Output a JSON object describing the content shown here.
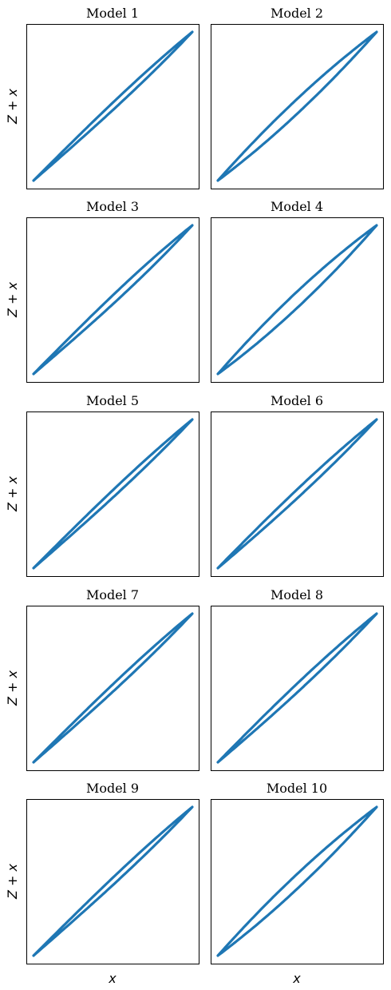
{
  "figure": {
    "accent_color": "#1f77b4",
    "ylabel": "Z + x",
    "xlabel": "x"
  },
  "chart_data": [
    {
      "type": "line",
      "title": "Model 1",
      "xlabel": "",
      "ylabel": "Z + x",
      "grid": false,
      "ticks": false,
      "series": [
        {
          "loop_width": 0.05,
          "asymmetry": 0.3
        }
      ]
    },
    {
      "type": "line",
      "title": "Model 2",
      "xlabel": "",
      "ylabel": "",
      "grid": false,
      "ticks": false,
      "series": [
        {
          "loop_width": 0.1,
          "asymmetry": 0.0
        }
      ]
    },
    {
      "type": "line",
      "title": "Model 3",
      "xlabel": "",
      "ylabel": "Z + x",
      "grid": false,
      "ticks": false,
      "series": [
        {
          "loop_width": 0.06,
          "asymmetry": 0.3
        }
      ]
    },
    {
      "type": "line",
      "title": "Model 4",
      "xlabel": "",
      "ylabel": "",
      "grid": false,
      "ticks": false,
      "series": [
        {
          "loop_width": 0.11,
          "asymmetry": 0.0
        }
      ]
    },
    {
      "type": "line",
      "title": "Model 5",
      "xlabel": "",
      "ylabel": "Z + x",
      "grid": false,
      "ticks": false,
      "series": [
        {
          "loop_width": 0.05,
          "asymmetry": 0.3
        }
      ]
    },
    {
      "type": "line",
      "title": "Model 6",
      "xlabel": "",
      "ylabel": "",
      "grid": false,
      "ticks": false,
      "series": [
        {
          "loop_width": 0.06,
          "asymmetry": 0.2
        }
      ]
    },
    {
      "type": "line",
      "title": "Model 7",
      "xlabel": "",
      "ylabel": "Z + x",
      "grid": false,
      "ticks": false,
      "series": [
        {
          "loop_width": 0.05,
          "asymmetry": 0.3
        }
      ]
    },
    {
      "type": "line",
      "title": "Model 8",
      "xlabel": "",
      "ylabel": "",
      "grid": false,
      "ticks": false,
      "series": [
        {
          "loop_width": 0.06,
          "asymmetry": 0.2
        }
      ]
    },
    {
      "type": "line",
      "title": "Model 9",
      "xlabel": "x",
      "ylabel": "Z + x",
      "grid": false,
      "ticks": false,
      "series": [
        {
          "loop_width": 0.05,
          "asymmetry": 0.3
        }
      ]
    },
    {
      "type": "line",
      "title": "Model 10",
      "xlabel": "x",
      "ylabel": "",
      "grid": false,
      "ticks": false,
      "series": [
        {
          "loop_width": 0.1,
          "asymmetry": 0.0
        }
      ]
    }
  ]
}
